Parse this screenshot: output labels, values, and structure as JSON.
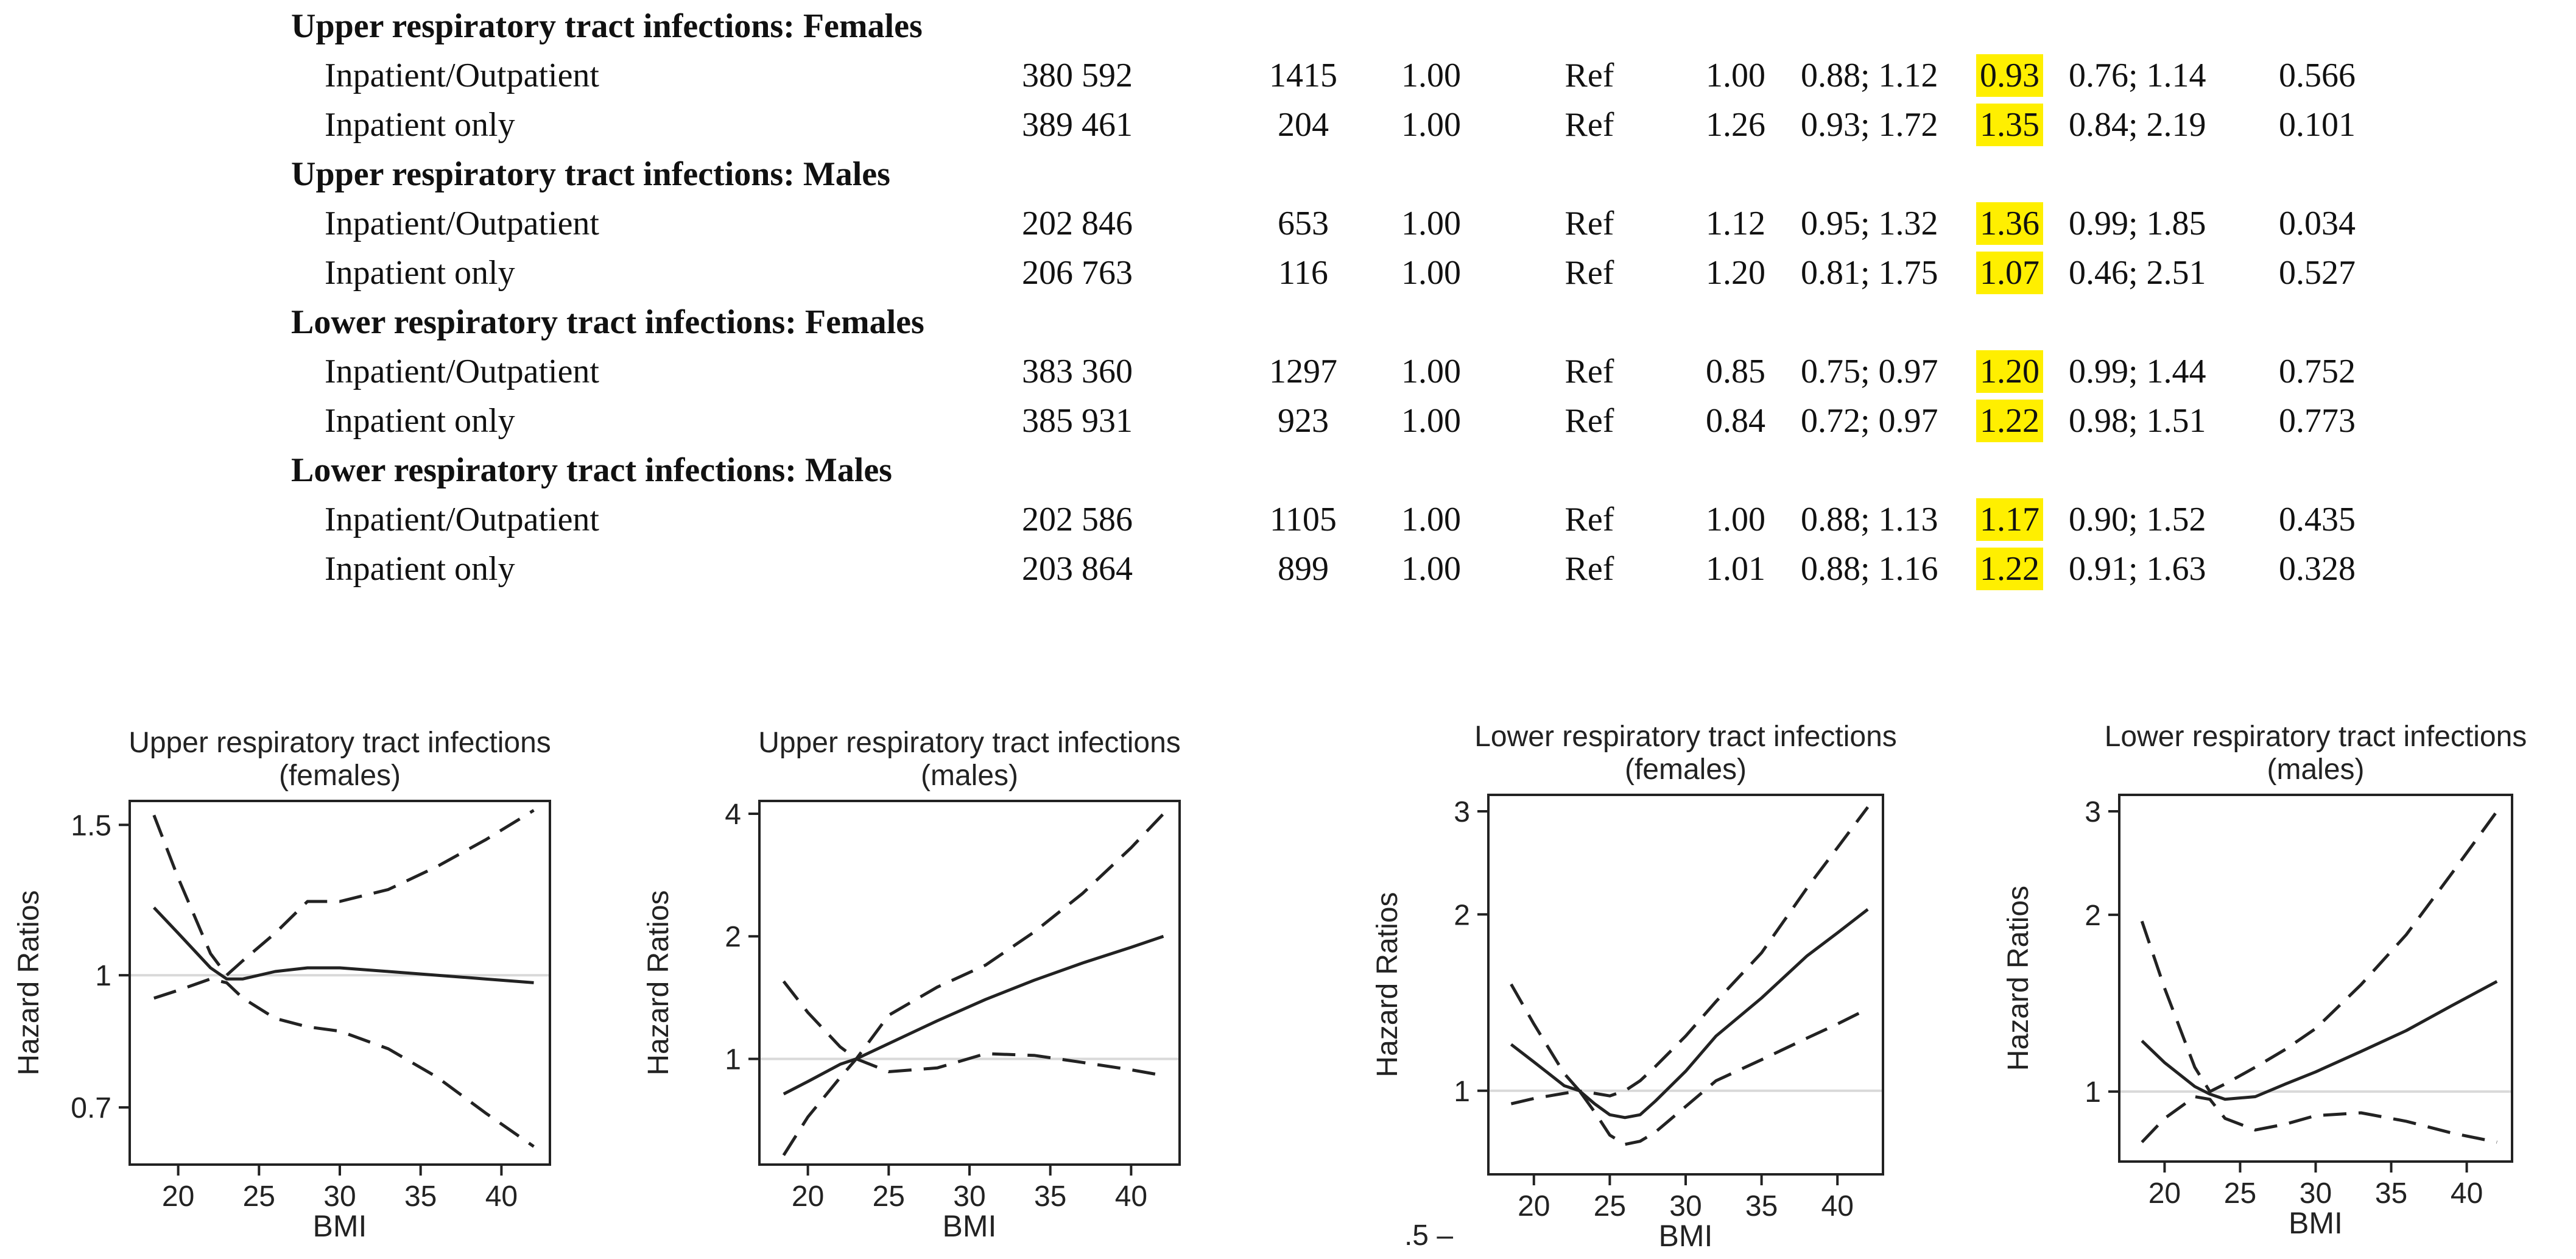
{
  "table": {
    "groups": [
      {
        "title": "Upper respiratory tract infections: Females",
        "rows": [
          {
            "label": "Inpatient/Outpatient",
            "n": "380 592",
            "events": "1415",
            "hr1": "1.00",
            "ref": "Ref",
            "hr2": "1.00",
            "ci2": "0.88; 1.12",
            "hr3": "0.93",
            "ci3": "0.76; 1.14",
            "p": "0.566"
          },
          {
            "label": "Inpatient only",
            "n": "389 461",
            "events": "204",
            "hr1": "1.00",
            "ref": "Ref",
            "hr2": "1.26",
            "ci2": "0.93; 1.72",
            "hr3": "1.35",
            "ci3": "0.84; 2.19",
            "p": "0.101"
          }
        ]
      },
      {
        "title": "Upper respiratory tract infections: Males",
        "rows": [
          {
            "label": "Inpatient/Outpatient",
            "n": "202 846",
            "events": "653",
            "hr1": "1.00",
            "ref": "Ref",
            "hr2": "1.12",
            "ci2": "0.95; 1.32",
            "hr3": "1.36",
            "ci3": "0.99; 1.85",
            "p": "0.034"
          },
          {
            "label": "Inpatient only",
            "n": "206 763",
            "events": "116",
            "hr1": "1.00",
            "ref": "Ref",
            "hr2": "1.20",
            "ci2": "0.81; 1.75",
            "hr3": "1.07",
            "ci3": "0.46; 2.51",
            "p": "0.527"
          }
        ]
      },
      {
        "title": "Lower respiratory tract infections: Females",
        "rows": [
          {
            "label": "Inpatient/Outpatient",
            "n": "383 360",
            "events": "1297",
            "hr1": "1.00",
            "ref": "Ref",
            "hr2": "0.85",
            "ci2": "0.75; 0.97",
            "hr3": "1.20",
            "ci3": "0.99; 1.44",
            "p": "0.752"
          },
          {
            "label": "Inpatient only",
            "n": "385 931",
            "events": "923",
            "hr1": "1.00",
            "ref": "Ref",
            "hr2": "0.84",
            "ci2": "0.72; 0.97",
            "hr3": "1.22",
            "ci3": "0.98; 1.51",
            "p": "0.773"
          }
        ]
      },
      {
        "title": "Lower respiratory tract infections: Males",
        "rows": [
          {
            "label": "Inpatient/Outpatient",
            "n": "202 586",
            "events": "1105",
            "hr1": "1.00",
            "ref": "Ref",
            "hr2": "1.00",
            "ci2": "0.88; 1.13",
            "hr3": "1.17",
            "ci3": "0.90; 1.52",
            "p": "0.435"
          },
          {
            "label": "Inpatient only",
            "n": "203 864",
            "events": "899",
            "hr1": "1.00",
            "ref": "Ref",
            "hr2": "1.01",
            "ci2": "0.88; 1.16",
            "hr3": "1.22",
            "ci3": "0.91; 1.63",
            "p": "0.328"
          }
        ]
      }
    ],
    "highlight_color": "#ffef00"
  },
  "chart_data": [
    {
      "type": "line",
      "title": "Upper respiratory tract infections (females)",
      "title_lines": [
        "Upper respiratory tract infections",
        "(females)"
      ],
      "xlabel": "BMI",
      "ylabel": "Hazard Ratios",
      "xlim": [
        17,
        43
      ],
      "ylim": [
        0.6,
        1.6
      ],
      "yscale": "log",
      "xticks": [
        "20",
        "25",
        "30",
        "35",
        "40"
      ],
      "yticks": [
        "0.7",
        "1",
        "1.5"
      ],
      "reference_line": 1,
      "x": [
        18.5,
        20,
        22,
        23,
        24,
        26,
        28,
        30,
        33,
        36,
        39,
        42
      ],
      "series": [
        {
          "role": "estimate",
          "style": "solid",
          "values": [
            1.2,
            1.12,
            1.02,
            0.99,
            0.99,
            1.01,
            1.02,
            1.02,
            1.01,
            1.0,
            0.99,
            0.98
          ]
        },
        {
          "role": "upper",
          "style": "dashed",
          "values": [
            1.54,
            1.3,
            1.06,
            1.0,
            1.04,
            1.12,
            1.22,
            1.22,
            1.26,
            1.34,
            1.44,
            1.56
          ]
        },
        {
          "role": "lower",
          "style": "dashed",
          "values": [
            0.94,
            0.96,
            0.99,
            0.98,
            0.94,
            0.89,
            0.87,
            0.86,
            0.82,
            0.76,
            0.69,
            0.63
          ]
        }
      ]
    },
    {
      "type": "line",
      "title": "Upper respiratory tract infections (males)",
      "title_lines": [
        "Upper respiratory tract infections",
        "(males)"
      ],
      "xlabel": "BMI",
      "ylabel": "Hazard Ratios",
      "xlim": [
        17,
        43
      ],
      "ylim": [
        0.55,
        4.3
      ],
      "yscale": "log",
      "xticks": [
        "20",
        "25",
        "30",
        "35",
        "40"
      ],
      "yticks": [
        "1",
        "2",
        "4"
      ],
      "reference_line": 1,
      "x": [
        18.5,
        20,
        22,
        23,
        25,
        28,
        31,
        34,
        37,
        40,
        42
      ],
      "series": [
        {
          "role": "estimate",
          "style": "solid",
          "values": [
            0.82,
            0.88,
            0.97,
            1.0,
            1.09,
            1.24,
            1.4,
            1.56,
            1.72,
            1.88,
            2.0
          ]
        },
        {
          "role": "upper",
          "style": "dashed",
          "values": [
            0.58,
            0.72,
            0.9,
            1.0,
            1.28,
            1.5,
            1.7,
            2.05,
            2.55,
            3.3,
            4.0
          ]
        },
        {
          "role": "lower",
          "style": "dashed",
          "values": [
            1.55,
            1.3,
            1.07,
            1.0,
            0.93,
            0.95,
            1.03,
            1.02,
            0.98,
            0.94,
            0.91
          ]
        }
      ]
    },
    {
      "type": "line",
      "title": "Lower respiratory tract infections (females)",
      "title_lines": [
        "Lower respiratory tract infections",
        "(females)"
      ],
      "xlabel": "BMI",
      "ylabel": "Hazard Ratios",
      "xlim": [
        17,
        43
      ],
      "ylim": [
        0.72,
        3.2
      ],
      "yscale": "log",
      "xticks": [
        "20",
        "25",
        "30",
        "35",
        "40"
      ],
      "yticks": [
        "1",
        "2",
        "3"
      ],
      "extra_label": ".5",
      "reference_line": 1,
      "x": [
        18.5,
        20,
        22,
        23,
        24,
        25,
        26,
        27,
        28,
        30,
        32,
        35,
        38,
        40,
        42
      ],
      "series": [
        {
          "role": "estimate",
          "style": "solid",
          "values": [
            1.2,
            1.12,
            1.02,
            1.0,
            0.95,
            0.91,
            0.9,
            0.91,
            0.96,
            1.08,
            1.24,
            1.44,
            1.7,
            1.86,
            2.04
          ]
        },
        {
          "role": "upper",
          "style": "dashed",
          "values": [
            1.52,
            1.3,
            1.07,
            1.0,
            0.99,
            0.98,
            1.0,
            1.04,
            1.1,
            1.24,
            1.42,
            1.72,
            2.22,
            2.6,
            3.05
          ]
        },
        {
          "role": "lower",
          "style": "dashed",
          "values": [
            0.95,
            0.97,
            0.99,
            1.0,
            0.92,
            0.84,
            0.81,
            0.82,
            0.85,
            0.94,
            1.04,
            1.13,
            1.23,
            1.3,
            1.38
          ]
        }
      ]
    },
    {
      "type": "line",
      "title": "Lower respiratory tract infections (males)",
      "title_lines": [
        "Lower respiratory tract infections",
        "(males)"
      ],
      "xlabel": "BMI",
      "ylabel": "Hazard Ratios",
      "xlim": [
        17,
        43
      ],
      "ylim": [
        0.76,
        3.2
      ],
      "yscale": "log",
      "xticks": [
        "20",
        "25",
        "30",
        "35",
        "40"
      ],
      "yticks": [
        "1",
        "2",
        "3"
      ],
      "reference_line": 1,
      "x": [
        18.5,
        20,
        22,
        23,
        24,
        26,
        28,
        30,
        33,
        36,
        39,
        42
      ],
      "series": [
        {
          "role": "estimate",
          "style": "solid",
          "values": [
            1.22,
            1.12,
            1.02,
            0.99,
            0.97,
            0.98,
            1.03,
            1.08,
            1.17,
            1.27,
            1.4,
            1.54
          ]
        },
        {
          "role": "upper",
          "style": "dashed",
          "values": [
            1.95,
            1.5,
            1.1,
            1.0,
            1.03,
            1.1,
            1.18,
            1.28,
            1.52,
            1.85,
            2.35,
            3.0
          ]
        },
        {
          "role": "lower",
          "style": "dashed",
          "values": [
            0.82,
            0.9,
            0.98,
            0.97,
            0.9,
            0.86,
            0.88,
            0.91,
            0.92,
            0.89,
            0.85,
            0.82
          ]
        }
      ]
    }
  ]
}
